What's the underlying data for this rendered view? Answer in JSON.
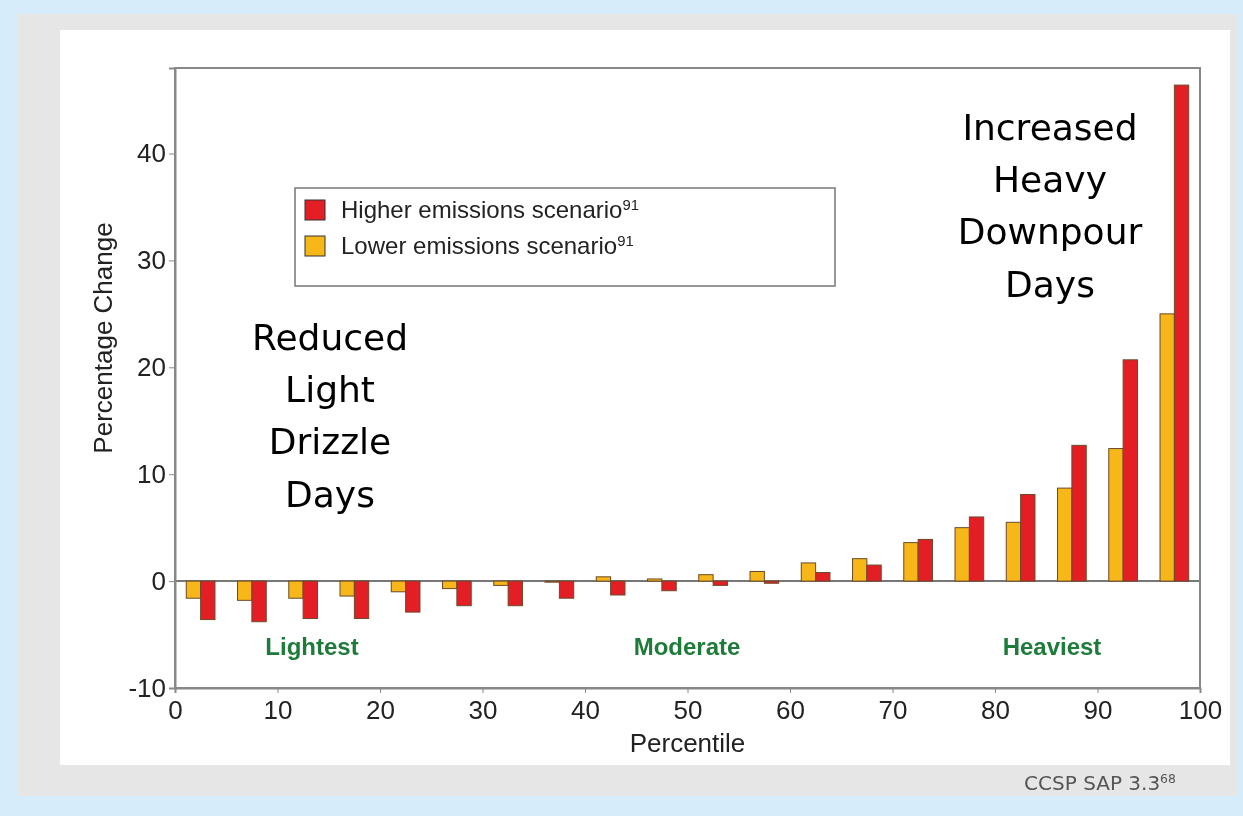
{
  "chart_data": {
    "type": "bar",
    "xlabel": "Percentile",
    "ylabel": "Percentage Change",
    "x": [
      2.5,
      7.5,
      12.5,
      17.5,
      22.5,
      27.5,
      32.5,
      37.5,
      42.5,
      47.5,
      52.5,
      57.5,
      62.5,
      67.5,
      72.5,
      77.5,
      82.5,
      87.5,
      92.5,
      97.5
    ],
    "series": [
      {
        "name": "Lower emissions scenario$^{91}$",
        "color": "#f7b718",
        "values": [
          -1.6,
          -1.8,
          -1.6,
          -1.4,
          -1.0,
          -0.7,
          -0.4,
          -0.1,
          0.4,
          0.2,
          0.6,
          0.9,
          1.7,
          2.1,
          3.6,
          5.0,
          5.5,
          8.7,
          12.4,
          25.0
        ]
      },
      {
        "name": "Higher emissions scenario$^{91}$",
        "color": "#e31e24",
        "values": [
          -3.6,
          -3.8,
          -3.5,
          -3.5,
          -2.9,
          -2.3,
          -2.3,
          -1.6,
          -1.3,
          -0.9,
          -0.4,
          -0.2,
          0.8,
          1.5,
          3.9,
          6.0,
          8.1,
          12.7,
          20.7,
          46.4
        ]
      }
    ],
    "xlim": [
      0,
      100
    ],
    "xticks": [
      0,
      10,
      20,
      30,
      40,
      50,
      60,
      70,
      80,
      90,
      100
    ],
    "ylim": [
      -10,
      48
    ],
    "yticks": [
      -10,
      0,
      10,
      20,
      30,
      40
    ],
    "legend": "top left",
    "annotations": [
      "Reduced Light Drizzle Days",
      "Increased Heavy Downpour Days",
      "Lightest",
      "Moderate",
      "Heaviest",
      "CCSP SAP 3.3$^{68}$"
    ]
  }
}
